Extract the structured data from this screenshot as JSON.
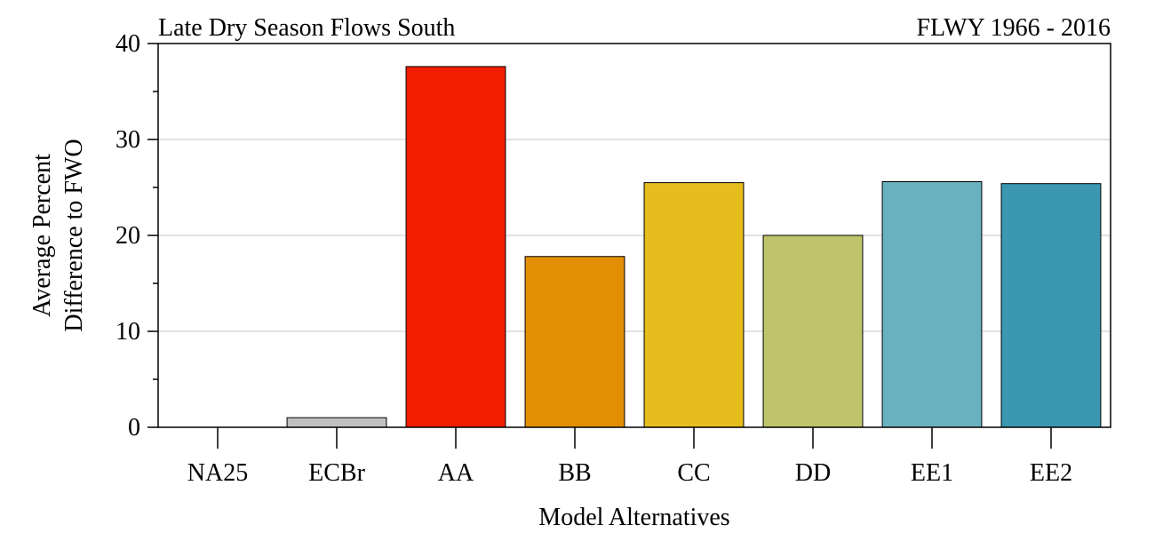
{
  "chart_data": {
    "type": "bar",
    "title": "Late Dry Season Flows South",
    "subtitle": "FLWY 1966 - 2016",
    "xlabel": "Model Alternatives",
    "ylabel_line1": "Average Percent",
    "ylabel_line2": "Difference to FWO",
    "categories": [
      "NA25",
      "ECBr",
      "AA",
      "BB",
      "CC",
      "DD",
      "EE1",
      "EE2"
    ],
    "values": [
      0,
      1.0,
      37.6,
      17.8,
      25.5,
      20.0,
      25.6,
      25.4
    ],
    "colors": [
      "#ffffff",
      "#c0c0c0",
      "#f21d00",
      "#e38f04",
      "#e5be1e",
      "#bfc46a",
      "#6ab1c0",
      "#3c97b1"
    ],
    "ylim": [
      0,
      40
    ],
    "yticks": [
      0,
      10,
      20,
      30,
      40
    ],
    "grid": true
  }
}
